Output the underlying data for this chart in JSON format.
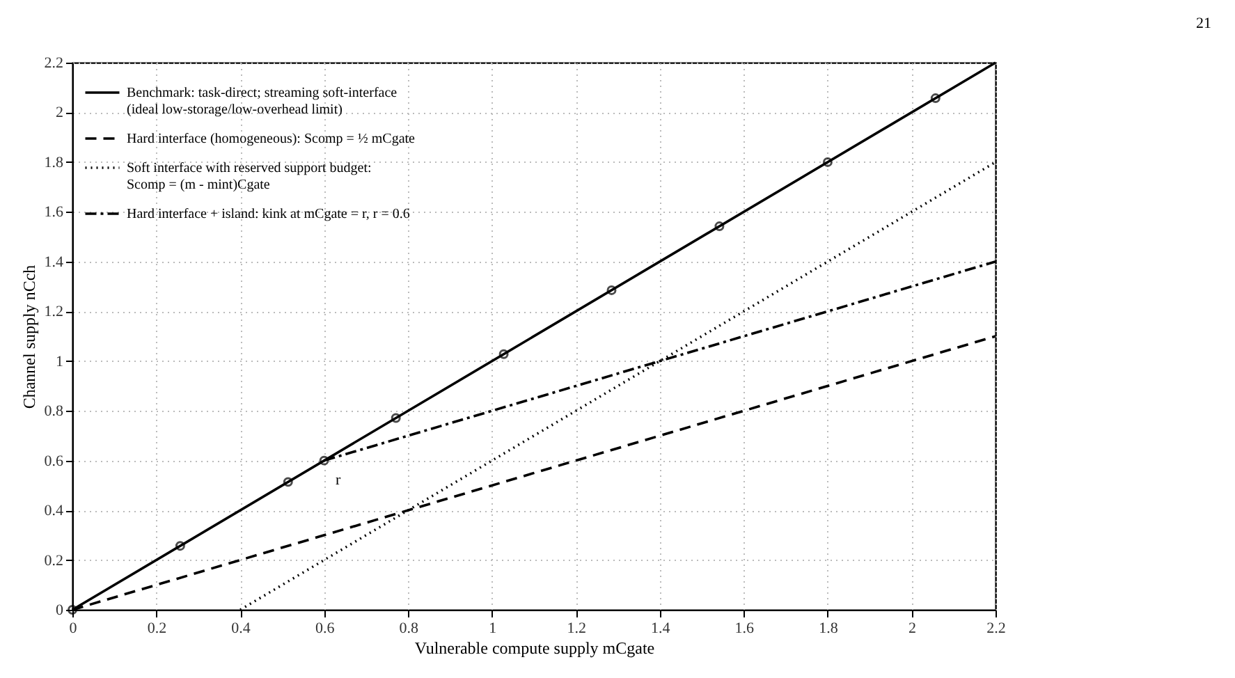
{
  "chart_data": {
    "type": "line",
    "xlabel": "Vulnerable compute supply mCgate",
    "ylabel": "Channel supply nCch",
    "xlim": [
      0,
      2.2
    ],
    "ylim": [
      0,
      2.2
    ],
    "xticks": [
      0,
      0.2,
      0.4,
      0.6,
      0.8,
      1,
      1.2,
      1.4,
      1.6,
      1.8,
      2,
      2.2
    ],
    "yticks": [
      0,
      0.2,
      0.4,
      0.6,
      0.8,
      1,
      1.2,
      1.4,
      1.6,
      1.8,
      2,
      2.2
    ],
    "grid": true,
    "legend": "top left",
    "series": [
      {
        "name": "Benchmark: task-direct; streaming soft-interface\n(ideal low-storage/low-overhead limit)",
        "color": "#000000",
        "line_style": "solid",
        "x": [
          0,
          2.2
        ],
        "values": [
          0,
          2.2
        ]
      },
      {
        "color": "#000000",
        "type": "scatter",
        "marker": "circle",
        "x": [
          0,
          0.257,
          0.514,
          0.6,
          0.771,
          1.028,
          1.285,
          1.542,
          1.8,
          2.057
        ],
        "values": [
          0,
          0.257,
          0.514,
          0.6,
          0.771,
          1.028,
          1.285,
          1.542,
          1.8,
          2.057
        ]
      },
      {
        "name": "Hard interface (homogeneous): Scomp = ½ mCgate",
        "color": "#000000",
        "line_style": "dashed",
        "x": [
          0,
          2.2
        ],
        "values": [
          0,
          1.1
        ]
      },
      {
        "name": "Soft interface with reserved support budget:\nScomp = (m - mint)Cgate",
        "color": "#000000",
        "line_style": "dotted",
        "x": [
          0.4,
          2.2
        ],
        "values": [
          0,
          1.8
        ]
      },
      {
        "name": "Hard interface + island: kink at mCgate = r,  r = 0.6",
        "color": "#000000",
        "line_style": "dashdot",
        "x": [
          0.6,
          2.2
        ],
        "values": [
          0.6,
          1.4
        ]
      }
    ],
    "annotations": [
      {
        "text": "r",
        "x": 0.6,
        "y": 0.6
      },
      "21"
    ]
  }
}
